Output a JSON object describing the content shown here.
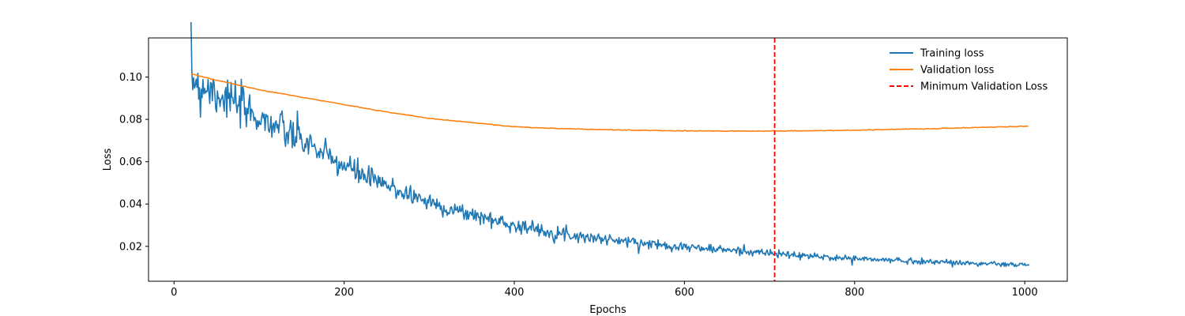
{
  "chart_data": {
    "type": "line",
    "title": "",
    "xlabel": "Epochs",
    "ylabel": "Loss",
    "xlim": [
      -30,
      1050
    ],
    "ylim": [
      0.0035,
      0.1185
    ],
    "x_ticks": [
      0,
      200,
      400,
      600,
      800,
      1000
    ],
    "x_tick_labels": [
      "0",
      "200",
      "400",
      "600",
      "800",
      "1000"
    ],
    "y_ticks": [
      0.02,
      0.04,
      0.06,
      0.08,
      0.1
    ],
    "y_tick_labels": [
      "0.02",
      "0.04",
      "0.06",
      "0.08",
      "0.10"
    ],
    "grid": false,
    "legend_position": "top-right",
    "colors": {
      "training": "#1f77b4",
      "validation": "#ff7f0e",
      "min_line": "#ff0000"
    },
    "series": [
      {
        "name": "Training loss",
        "style": "solid",
        "noisy": true,
        "x": [
          20,
          25,
          30,
          35,
          40,
          50,
          60,
          70,
          80,
          90,
          100,
          110,
          120,
          130,
          140,
          150,
          160,
          170,
          180,
          190,
          200,
          220,
          240,
          260,
          280,
          300,
          320,
          340,
          360,
          380,
          400,
          420,
          440,
          460,
          480,
          500,
          520,
          540,
          560,
          580,
          600,
          620,
          640,
          660,
          680,
          700,
          720,
          740,
          760,
          780,
          800,
          820,
          840,
          860,
          880,
          900,
          920,
          940,
          960,
          980,
          1000,
          1005
        ],
        "values": [
          0.099,
          0.1,
          0.094,
          0.097,
          0.095,
          0.093,
          0.091,
          0.088,
          0.085,
          0.083,
          0.081,
          0.079,
          0.077,
          0.074,
          0.072,
          0.07,
          0.068,
          0.065,
          0.062,
          0.06,
          0.058,
          0.054,
          0.05,
          0.047,
          0.044,
          0.041,
          0.038,
          0.036,
          0.034,
          0.032,
          0.03,
          0.0285,
          0.027,
          0.0258,
          0.0247,
          0.0237,
          0.0228,
          0.022,
          0.0212,
          0.0205,
          0.0198,
          0.0191,
          0.0185,
          0.018,
          0.0175,
          0.0167,
          0.016,
          0.0155,
          0.015,
          0.0146,
          0.0142,
          0.0138,
          0.0135,
          0.0132,
          0.0129,
          0.0126,
          0.0123,
          0.012,
          0.0117,
          0.0114,
          0.0112,
          0.011
        ]
      },
      {
        "name": "Validation loss",
        "style": "solid",
        "noisy": false,
        "x": [
          20,
          50,
          100,
          150,
          200,
          250,
          300,
          350,
          400,
          450,
          500,
          550,
          600,
          650,
          700,
          750,
          800,
          850,
          900,
          950,
          1005
        ],
        "values": [
          0.1015,
          0.0985,
          0.094,
          0.0905,
          0.087,
          0.0835,
          0.0805,
          0.0785,
          0.0765,
          0.0757,
          0.0752,
          0.0748,
          0.0746,
          0.0745,
          0.0745,
          0.0746,
          0.0749,
          0.0753,
          0.0757,
          0.0762,
          0.0768
        ]
      }
    ],
    "vlines": [
      {
        "name": "Minimum Validation Loss",
        "x": 706,
        "style": "dashed"
      }
    ]
  }
}
